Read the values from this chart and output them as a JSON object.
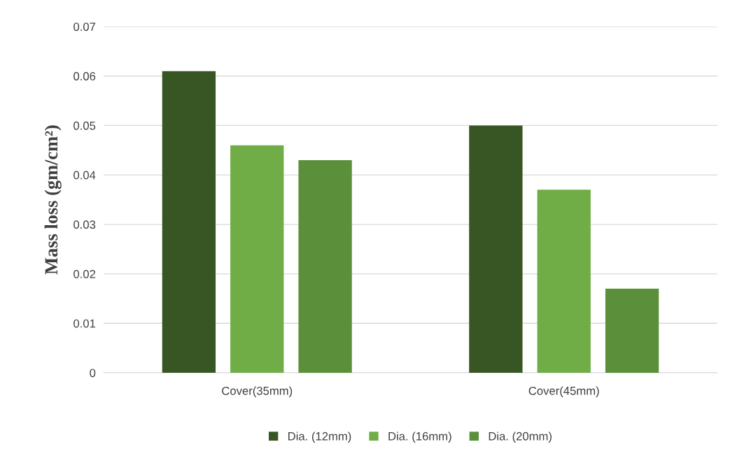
{
  "chart_data": {
    "type": "bar",
    "ylabel": "Mass loss (gm/cm²)",
    "categories": [
      "Cover(35mm)",
      "Cover(45mm)"
    ],
    "series": [
      {
        "name": "Dia. (12mm)",
        "color": "#375623",
        "values": [
          0.061,
          0.05
        ]
      },
      {
        "name": "Dia. (16mm)",
        "color": "#70ad47",
        "values": [
          0.046,
          0.037
        ]
      },
      {
        "name": "Dia. (20mm)",
        "color": "#5b8f3a",
        "values": [
          0.043,
          0.017
        ]
      }
    ],
    "ylim": [
      0,
      0.07
    ],
    "yticks": [
      0,
      0.01,
      0.02,
      0.03,
      0.04,
      0.05,
      0.06,
      0.07
    ],
    "grid": "y",
    "legend": "bottom"
  }
}
